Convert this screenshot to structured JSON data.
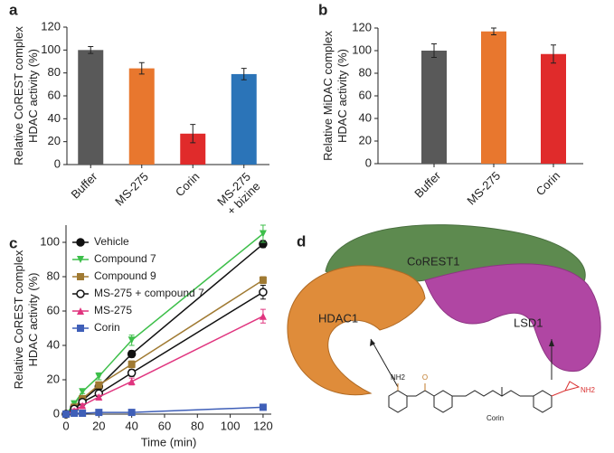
{
  "chart_data": [
    {
      "type": "bar",
      "panel": "a",
      "ylabel": "Relative CoREST complex\nHDAC activity (%)",
      "categories": [
        "Buffer",
        "MS-275",
        "Corin",
        "MS-275\n+ bizine"
      ],
      "values": [
        100,
        84,
        27,
        79
      ],
      "errors": [
        3,
        5,
        8,
        5
      ],
      "colors": [
        "#595959",
        "#e8772e",
        "#e02b2b",
        "#2b74b8"
      ],
      "ylim": [
        0,
        120
      ],
      "yticks": [
        0,
        20,
        40,
        60,
        80,
        100,
        120
      ]
    },
    {
      "type": "bar",
      "panel": "b",
      "ylabel": "Relative MiDAC complex\nHDAC activity (%)",
      "categories": [
        "Buffer",
        "MS-275",
        "Corin"
      ],
      "values": [
        100,
        117,
        97
      ],
      "errors": [
        6,
        3,
        8
      ],
      "colors": [
        "#595959",
        "#e8772e",
        "#e02b2b"
      ],
      "ylim": [
        0,
        120
      ],
      "yticks": [
        0,
        20,
        40,
        60,
        80,
        100,
        120
      ]
    },
    {
      "type": "line",
      "panel": "c",
      "ylabel": "Relative CoREST complex\nHDAC activity (%)",
      "xlabel": "Time (min)",
      "x": [
        0,
        5,
        10,
        20,
        40,
        120
      ],
      "series": [
        {
          "name": "Vehicle",
          "color": "#111111",
          "marker": "circle",
          "values": [
            0,
            4,
            8,
            16,
            35,
            99
          ],
          "errors": [
            0,
            1,
            1,
            1,
            2,
            2
          ]
        },
        {
          "name": "Compound 7",
          "color": "#3dbf4a",
          "marker": "triangle-down",
          "values": [
            0,
            6,
            13,
            22,
            43,
            105
          ],
          "errors": [
            0,
            1,
            1,
            2,
            3,
            5
          ]
        },
        {
          "name": "Compound 9",
          "color": "#a07a32",
          "marker": "square",
          "values": [
            0,
            4,
            9,
            17,
            29,
            78
          ],
          "errors": [
            0,
            1,
            1,
            1,
            2,
            2
          ]
        },
        {
          "name": "MS-275 + compound 7",
          "color": "#111111",
          "marker": "circle-open",
          "values": [
            0,
            3,
            7,
            12,
            24,
            71
          ],
          "errors": [
            0,
            1,
            1,
            1,
            2,
            4
          ]
        },
        {
          "name": "MS-275",
          "color": "#e0357f",
          "marker": "triangle-up",
          "values": [
            0,
            2,
            5,
            10,
            19,
            57
          ],
          "errors": [
            0,
            1,
            1,
            1,
            2,
            4
          ]
        },
        {
          "name": "Corin",
          "color": "#3f5fb8",
          "marker": "square",
          "values": [
            0,
            0.5,
            0.5,
            1,
            1,
            4
          ],
          "errors": [
            0,
            0.5,
            0.5,
            0.5,
            0.5,
            1
          ]
        }
      ],
      "xlim": [
        0,
        125
      ],
      "xticks": [
        0,
        20,
        40,
        60,
        80,
        100,
        120
      ],
      "ylim": [
        0,
        110
      ],
      "yticks": [
        0,
        20,
        40,
        60,
        80,
        100
      ],
      "legend": "upper left"
    }
  ],
  "diagram": {
    "panel": "d",
    "regions": [
      "CoREST1",
      "HDAC1",
      "LSD1"
    ],
    "molecule": "Corin",
    "groups": [
      "NH2",
      "O",
      "NH2"
    ]
  }
}
